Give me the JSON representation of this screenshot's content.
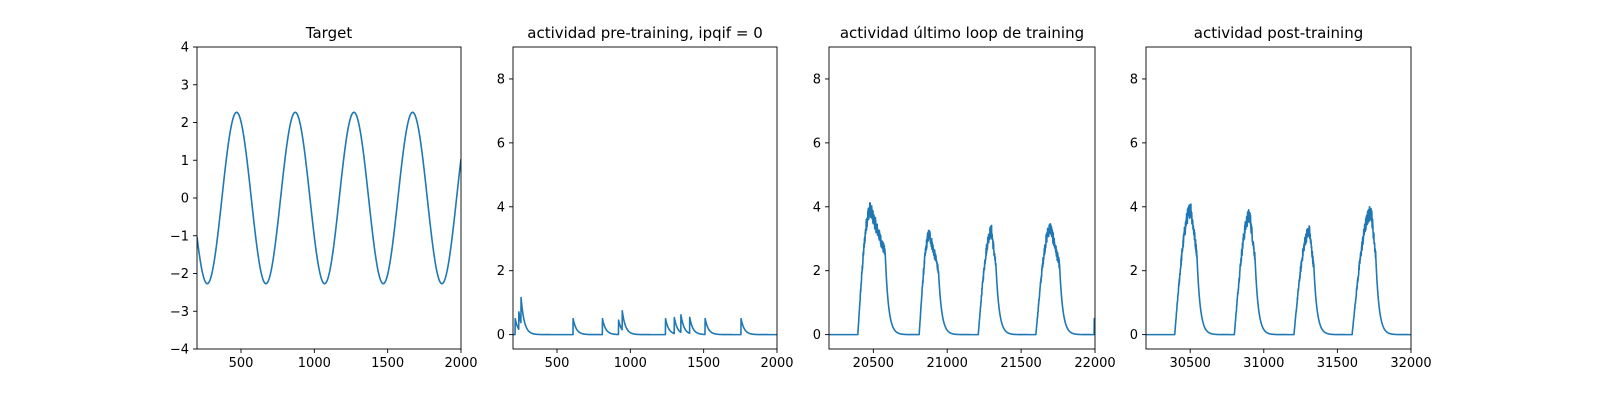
{
  "chart_data": [
    {
      "type": "line",
      "title": "Target",
      "xlim": [
        200,
        2000
      ],
      "ylim": [
        -4,
        4
      ],
      "xticks": [
        500,
        1000,
        1500,
        2000
      ],
      "yticks": [
        -4,
        -3,
        -2,
        -1,
        0,
        1,
        2,
        3,
        4
      ],
      "color": "#1f77b4",
      "series": [
        {
          "kind": "sine",
          "amplitude": 2.27,
          "period": 400,
          "peaks_x": [
            470,
            870,
            1270,
            1670
          ],
          "troughs_x": [
            270,
            670,
            1070,
            1470,
            1870
          ],
          "value_at_x200": -0.9,
          "value_at_x2000": 0.9
        }
      ]
    },
    {
      "type": "line",
      "title": "actividad pre-training, ipqif = 0",
      "xlim": [
        200,
        2000
      ],
      "ylim": [
        -0.45,
        9
      ],
      "xticks": [
        500,
        1000,
        1500,
        2000
      ],
      "yticks": [
        0,
        2,
        4,
        6,
        8
      ],
      "color": "#1f77b4",
      "series": [
        {
          "kind": "spikes",
          "baseline": 0,
          "spikes": [
            {
              "x": 215,
              "y": 0.5
            },
            {
              "x": 240,
              "y": 0.55
            },
            {
              "x": 255,
              "y": 0.8
            },
            {
              "x": 610,
              "y": 0.5
            },
            {
              "x": 810,
              "y": 0.5
            },
            {
              "x": 920,
              "y": 0.45
            },
            {
              "x": 945,
              "y": 0.6
            },
            {
              "x": 1240,
              "y": 0.5
            },
            {
              "x": 1300,
              "y": 0.5
            },
            {
              "x": 1345,
              "y": 0.55
            },
            {
              "x": 1405,
              "y": 0.5
            },
            {
              "x": 1510,
              "y": 0.5
            },
            {
              "x": 1755,
              "y": 0.5
            }
          ]
        }
      ]
    },
    {
      "type": "line",
      "title": "actividad último loop de training",
      "xlim": [
        20200,
        22000
      ],
      "ylim": [
        -0.45,
        9
      ],
      "xticks": [
        20500,
        21000,
        21500,
        22000
      ],
      "yticks": [
        0,
        2,
        4,
        6,
        8
      ],
      "color": "#1f77b4",
      "series": [
        {
          "kind": "bumps",
          "baseline": 0,
          "bumps": [
            {
              "start": 20395,
              "peak_x": 20480,
              "peak": 4.0,
              "drop": 20580
            },
            {
              "start": 20810,
              "peak_x": 20880,
              "peak": 3.2,
              "drop": 20940
            },
            {
              "start": 21210,
              "peak_x": 21300,
              "peak": 3.3,
              "drop": 21330
            },
            {
              "start": 21600,
              "peak_x": 21700,
              "peak": 3.4,
              "drop": 21760
            }
          ],
          "end_spike": {
            "x": 21995,
            "y": 0.5
          }
        }
      ]
    },
    {
      "type": "line",
      "title": "actividad post-training",
      "xlim": [
        30200,
        32000
      ],
      "ylim": [
        -0.45,
        9
      ],
      "xticks": [
        30500,
        31000,
        31500,
        32000
      ],
      "yticks": [
        0,
        2,
        4,
        6,
        8
      ],
      "color": "#1f77b4",
      "series": [
        {
          "kind": "bumps",
          "baseline": 0,
          "bumps": [
            {
              "start": 30395,
              "peak_x": 30505,
              "peak": 4.0,
              "drop": 30545
            },
            {
              "start": 30800,
              "peak_x": 30905,
              "peak": 3.8,
              "drop": 30940
            },
            {
              "start": 31205,
              "peak_x": 31310,
              "peak": 3.3,
              "drop": 31340
            },
            {
              "start": 31600,
              "peak_x": 31730,
              "peak": 3.9,
              "drop": 31760
            }
          ]
        }
      ]
    }
  ]
}
